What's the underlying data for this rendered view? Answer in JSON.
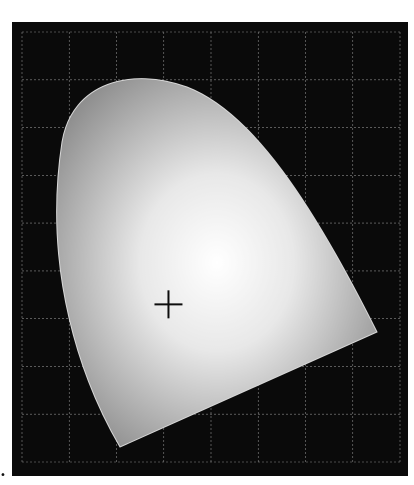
{
  "chart_data": {
    "type": "scatter",
    "title": "",
    "xlabel": "",
    "ylabel": "",
    "xlim": [
      0,
      0.8
    ],
    "ylim": [
      0,
      0.9
    ],
    "grid": true,
    "colors": {
      "background": "#0a0a0a",
      "grid": "#8a8a8a",
      "locus_fill": "#b9b9b9",
      "white_point_marker": "#0d0d0d"
    },
    "points": [
      {
        "x": 0.31,
        "y": 0.33
      }
    ]
  }
}
